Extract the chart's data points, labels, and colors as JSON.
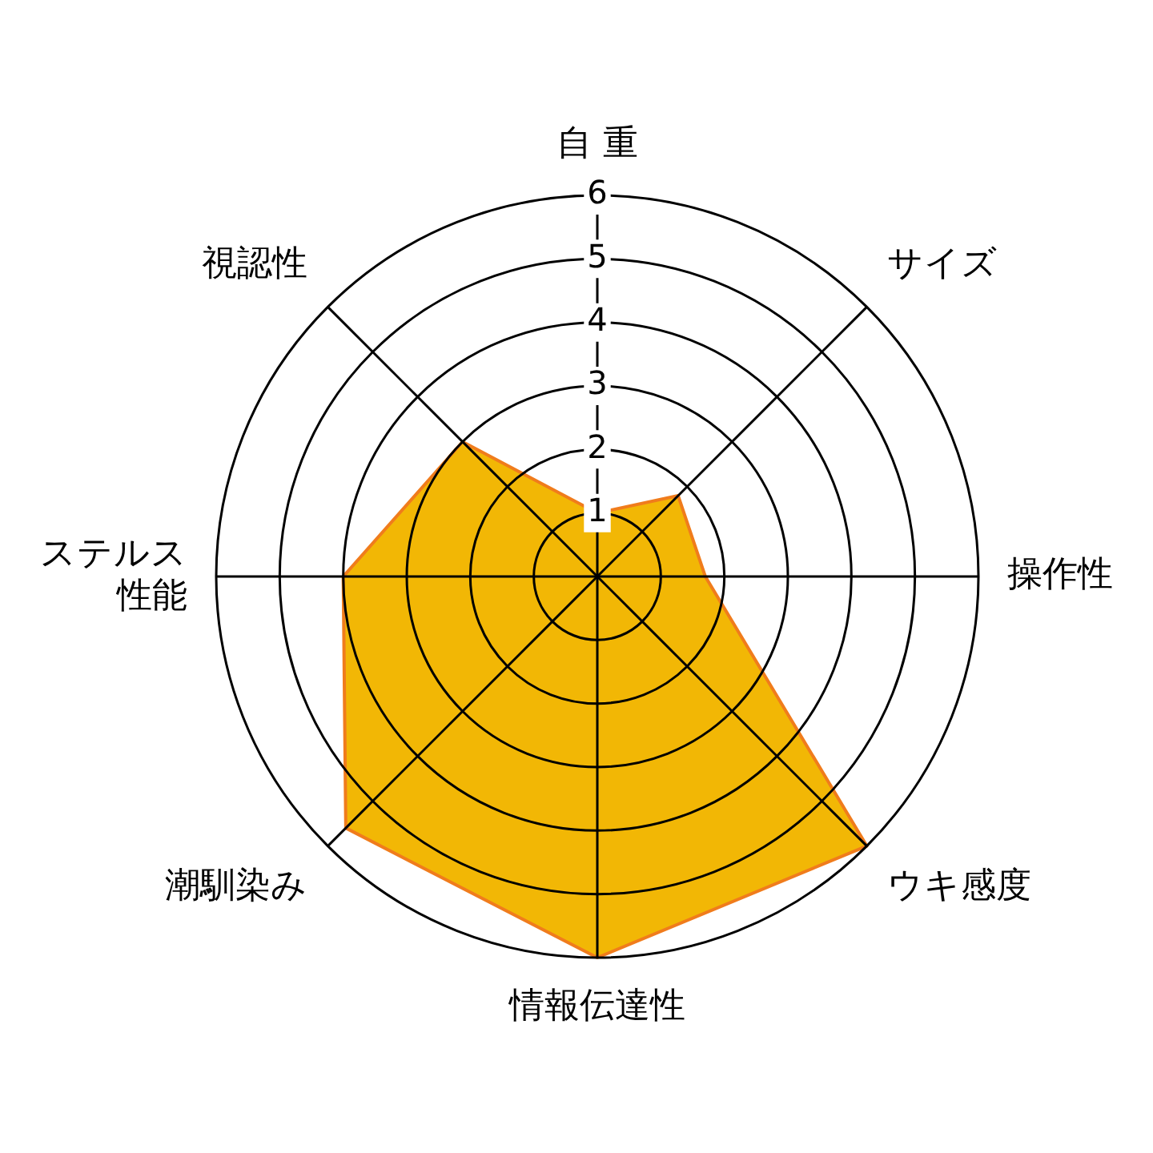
{
  "chart_data": {
    "type": "radar",
    "categories": [
      "自 重",
      "サイズ",
      "操作性",
      "ウキ感度",
      "情報伝達性",
      "潮馴染み",
      "ステルス性能",
      "視認性"
    ],
    "series": [
      {
        "color": "#f2b705",
        "values": [
          1,
          1.8,
          1.7,
          6,
          6,
          5.6,
          4,
          3
        ]
      }
    ],
    "ylim": [
      0,
      6
    ],
    "yticks": [
      1,
      2,
      3,
      4,
      5,
      6
    ],
    "legend": false,
    "marker": "none",
    "grid": true
  }
}
